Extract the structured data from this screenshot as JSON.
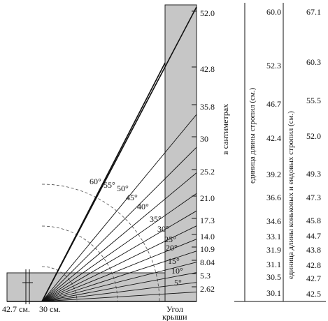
{
  "diagram": {
    "scale_labels_cm": [
      "52.0",
      "42.8",
      "35.8",
      "30",
      "25.2",
      "21.0",
      "17.3",
      "14.0",
      "10.9",
      "8.04",
      "5.3",
      "2.62"
    ],
    "angle_labels": [
      {
        "text": "60°",
        "deg": 60
      },
      {
        "text": "55°",
        "deg": 55
      },
      {
        "text": "50°",
        "deg": 50
      },
      {
        "text": "45°",
        "deg": 45
      },
      {
        "text": "40°",
        "deg": 40
      },
      {
        "text": "35°",
        "deg": 35
      },
      {
        "text": "30°",
        "deg": 30
      },
      {
        "text": "25°",
        "deg": 25
      },
      {
        "text": "20°",
        "deg": 20
      },
      {
        "text": "15°",
        "deg": 15
      },
      {
        "text": "10°",
        "deg": 10
      },
      {
        "text": "5°",
        "deg": 5
      }
    ],
    "vertical_caption": "в сантиметрах",
    "bottom_left_label": "42.7 см.",
    "bottom_mid_label": "30 см.",
    "roof_angle_line1": "Угол",
    "roof_angle_line2": "крыши"
  },
  "table": {
    "col1_header": "единица длины стропил (см.)",
    "col2_header": "единица длины коньковых и ендовых стропил (см.)",
    "col1_values": [
      "60.0",
      "52.3",
      "46.7",
      "42.4",
      "39.2",
      "36.6",
      "34.6",
      "33.1",
      "31.9",
      "31.1",
      "30.5",
      "30.1"
    ],
    "col2_values": [
      "67.1",
      "60.3",
      "55.5",
      "52.0",
      "49.3",
      "47.3",
      "45.8",
      "44.7",
      "43.8",
      "42.8",
      "42.7",
      "42.5"
    ]
  }
}
